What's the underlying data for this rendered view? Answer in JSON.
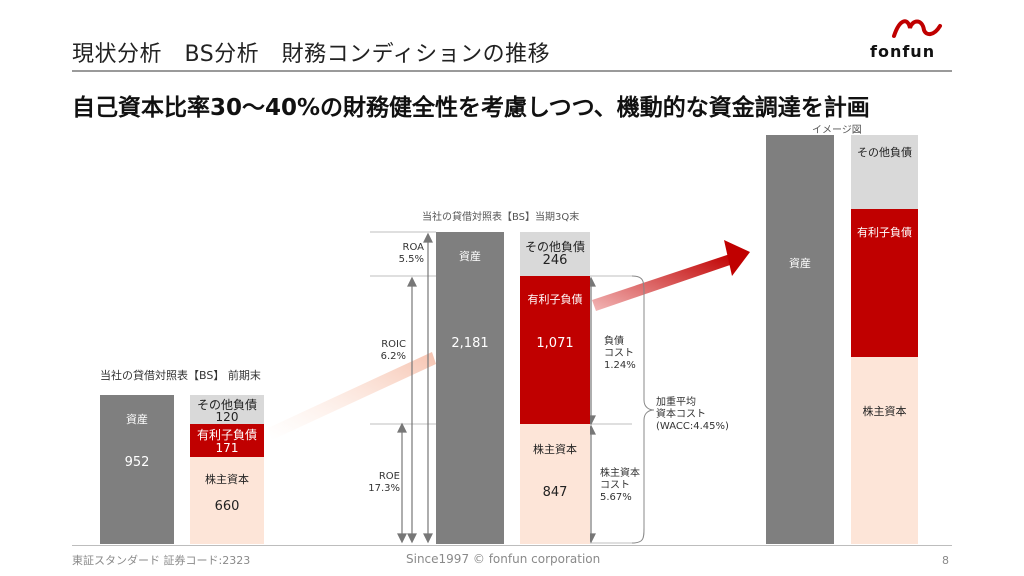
{
  "header": {
    "title": "現状分析　BS分析　財務コンディションの推移",
    "headline": "自己資本比率30～40%の財務健全性を考慮しつつ、機動的な資金調達を計画",
    "logo_text": "fonfun"
  },
  "left_chart": {
    "caption": "当社の貸借対照表【BS】 前期末",
    "assets_label": "資産",
    "assets_value": "952",
    "other_label": "その他負債",
    "other_value": "120",
    "debt_label": "有利子負債",
    "debt_value": "171",
    "equity_label": "株主資本",
    "equity_value": "660"
  },
  "middle_chart": {
    "caption": "当社の貸借対照表【BS】当期3Q末",
    "assets_label": "資産",
    "assets_value": "2,181",
    "other_label": "その他負債",
    "other_value": "246",
    "debt_label": "有利子負債",
    "debt_value": "1,071",
    "equity_label": "株主資本",
    "equity_value": "847",
    "roa_label": "ROA",
    "roa_value": "5.5%",
    "roic_label": "ROIC",
    "roic_value": "6.2%",
    "roe_label": "ROE",
    "roe_value": "17.3%",
    "debt_cost_line1": "負債",
    "debt_cost_line2": "コスト",
    "debt_cost_value": "1.24%",
    "equity_cost_line1": "株主資本",
    "equity_cost_line2": "コスト",
    "equity_cost_value": "5.67%",
    "wacc_line1": "加重平均",
    "wacc_line2": "資本コスト",
    "wacc_line3": "(WACC:4.45%)"
  },
  "right_chart": {
    "caption": "イメージ図",
    "assets_label": "資産",
    "other_label": "その他負債",
    "debt_label": "有利子負債",
    "equity_label": "株主資本"
  },
  "footer": {
    "left": "東証スタンダード 証券コード:2323",
    "center": "Since1997 © fonfun corporation",
    "page": "8"
  },
  "colors": {
    "assets": "#7f7f7f",
    "other_liabilities": "#d9d9d9",
    "interest_bearing_debt": "#c00000",
    "equity": "#fde5d8"
  }
}
